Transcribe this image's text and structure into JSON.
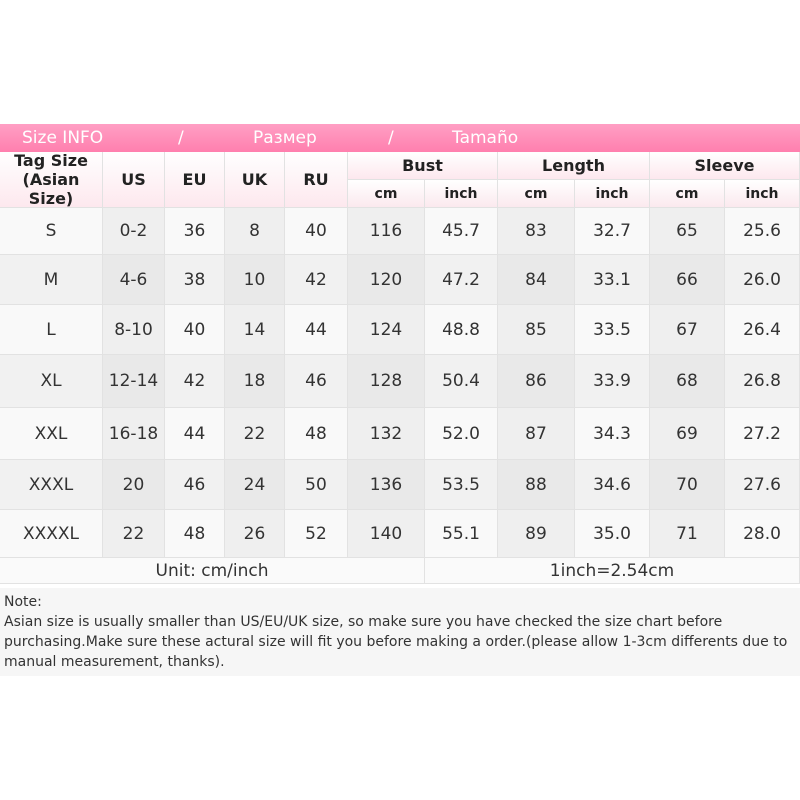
{
  "banner": [
    "Size INFO",
    "/",
    "Размер",
    "/",
    "Tamaño"
  ],
  "table": {
    "head": [
      "Tag Size\n(Asian Size)",
      "US",
      "EU",
      "UK",
      "RU"
    ],
    "groups": [
      "Bust",
      "Length",
      "Sleeve"
    ],
    "units": [
      "cm",
      "inch",
      "cm",
      "inch",
      "cm",
      "inch"
    ],
    "rows": [
      [
        "S",
        "0-2",
        "36",
        "8",
        "40",
        "116",
        "45.7",
        "83",
        "32.7",
        "65",
        "25.6"
      ],
      [
        "M",
        "4-6",
        "38",
        "10",
        "42",
        "120",
        "47.2",
        "84",
        "33.1",
        "66",
        "26.0"
      ],
      [
        "L",
        "8-10",
        "40",
        "14",
        "44",
        "124",
        "48.8",
        "85",
        "33.5",
        "67",
        "26.4"
      ],
      [
        "XL",
        "12-14",
        "42",
        "18",
        "46",
        "128",
        "50.4",
        "86",
        "33.9",
        "68",
        "26.8"
      ],
      [
        "XXL",
        "16-18",
        "44",
        "22",
        "48",
        "132",
        "52.0",
        "87",
        "34.3",
        "69",
        "27.2"
      ],
      [
        "XXXL",
        "20",
        "46",
        "24",
        "50",
        "136",
        "53.5",
        "88",
        "34.6",
        "70",
        "27.6"
      ],
      [
        "XXXXL",
        "22",
        "48",
        "26",
        "52",
        "140",
        "55.1",
        "89",
        "35.0",
        "71",
        "28.0"
      ]
    ],
    "footer": [
      "Unit: cm/inch",
      "1inch=2.54cm"
    ]
  },
  "note": {
    "title": "Note:",
    "text": "Asian size is usually smaller than US/EU/UK size, so make sure you have checked the size chart before purchasing.Make sure these actural size will fit you before making a order.(please allow 1-3cm differents due to manual measurement, thanks)."
  }
}
